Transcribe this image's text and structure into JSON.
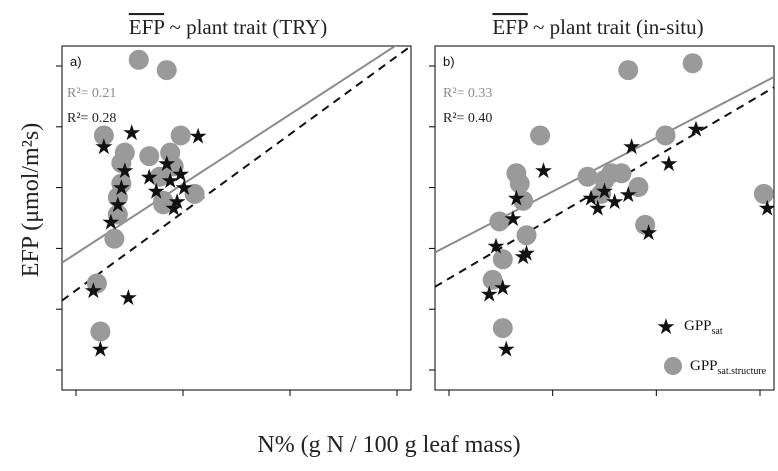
{
  "chart_data": [
    {
      "type": "scatter",
      "panel_label": "a)",
      "title": "EFP ~ plant trait (TRY)",
      "title_overlined": "EFP",
      "title_rest": " ~ plant trait (TRY)",
      "r2_structure": "R²= 0.21",
      "r2_gpp": "R²= 0.28",
      "r2_structure_color": "#8c8c8c",
      "r2_gpp_color": "#222222",
      "xlim": [
        0,
        10
      ],
      "ylim": [
        0,
        10
      ],
      "series": [
        {
          "name": "GPPsat.structure",
          "marker": "circle",
          "color": "#9a9a9a",
          "points": [
            [
              1.0,
              3.1
            ],
            [
              1.1,
              1.7
            ],
            [
              1.2,
              7.4
            ],
            [
              1.5,
              4.4
            ],
            [
              1.6,
              5.1
            ],
            [
              1.6,
              5.6
            ],
            [
              1.7,
              6.0
            ],
            [
              1.7,
              6.6
            ],
            [
              1.8,
              6.9
            ],
            [
              2.2,
              9.6
            ],
            [
              2.5,
              6.8
            ],
            [
              2.8,
              6.2
            ],
            [
              2.9,
              5.4
            ],
            [
              2.9,
              5.5
            ],
            [
              3.0,
              9.3
            ],
            [
              3.1,
              6.9
            ],
            [
              3.2,
              6.5
            ],
            [
              3.4,
              7.4
            ],
            [
              3.8,
              5.7
            ]
          ],
          "star_points": [
            [
              0.9,
              2.9
            ],
            [
              1.1,
              1.2
            ],
            [
              1.2,
              7.1
            ],
            [
              1.4,
              4.9
            ],
            [
              1.6,
              5.4
            ],
            [
              1.7,
              5.9
            ],
            [
              1.8,
              6.4
            ],
            [
              1.9,
              2.7
            ],
            [
              2.0,
              7.5
            ],
            [
              2.5,
              6.2
            ],
            [
              2.7,
              5.8
            ],
            [
              3.0,
              6.6
            ],
            [
              3.1,
              6.1
            ],
            [
              3.2,
              5.3
            ],
            [
              3.3,
              5.5
            ],
            [
              3.4,
              6.3
            ],
            [
              3.5,
              5.9
            ],
            [
              3.9,
              7.4
            ]
          ]
        }
      ],
      "xticks": 4,
      "yticks": 6,
      "line_structure": {
        "color": "#8c8c8c",
        "style": "solid",
        "x": [
          0,
          10
        ],
        "y": [
          3.7,
          10.3
        ]
      },
      "line_gpp": {
        "color": "#111111",
        "style": "dashed",
        "x": [
          0,
          10
        ],
        "y": [
          2.6,
          10.0
        ]
      }
    },
    {
      "type": "scatter",
      "panel_label": "b)",
      "title": "EFP ~ plant trait (in-situ)",
      "title_overlined": "EFP",
      "title_rest": " ~ plant trait (in-situ)",
      "r2_structure": "R²= 0.33",
      "r2_gpp": "R²= 0.40",
      "r2_structure_color": "#8c8c8c",
      "r2_gpp_color": "#222222",
      "xlim": [
        0,
        10
      ],
      "ylim": [
        0,
        10
      ],
      "series": [
        {
          "name": "GPPsat.structure",
          "marker": "circle",
          "color": "#9a9a9a",
          "points": [
            [
              1.7,
              3.2
            ],
            [
              1.9,
              4.9
            ],
            [
              2.0,
              3.8
            ],
            [
              2.0,
              1.8
            ],
            [
              2.4,
              6.3
            ],
            [
              2.5,
              6.0
            ],
            [
              2.6,
              5.5
            ],
            [
              2.7,
              4.5
            ],
            [
              3.1,
              7.4
            ],
            [
              4.5,
              6.2
            ],
            [
              4.9,
              5.7
            ],
            [
              5.0,
              6.1
            ],
            [
              5.2,
              6.3
            ],
            [
              5.5,
              6.3
            ],
            [
              5.7,
              9.3
            ],
            [
              6.0,
              5.9
            ],
            [
              6.2,
              4.8
            ],
            [
              6.8,
              7.4
            ],
            [
              7.6,
              9.5
            ],
            [
              9.7,
              5.7
            ]
          ],
          "star_points": [
            [
              1.6,
              2.8
            ],
            [
              1.8,
              4.2
            ],
            [
              2.0,
              3.0
            ],
            [
              2.1,
              1.2
            ],
            [
              2.3,
              5.0
            ],
            [
              2.4,
              5.6
            ],
            [
              2.6,
              3.9
            ],
            [
              2.7,
              4.0
            ],
            [
              3.2,
              6.4
            ],
            [
              4.6,
              5.6
            ],
            [
              4.8,
              5.3
            ],
            [
              5.0,
              5.8
            ],
            [
              5.3,
              5.5
            ],
            [
              5.7,
              5.7
            ],
            [
              5.8,
              7.1
            ],
            [
              6.3,
              4.6
            ],
            [
              6.9,
              6.6
            ],
            [
              7.7,
              7.6
            ],
            [
              9.8,
              5.3
            ]
          ]
        }
      ],
      "xticks": 4,
      "yticks": 6,
      "line_structure": {
        "color": "#8c8c8c",
        "style": "solid",
        "x": [
          0,
          10
        ],
        "y": [
          4.0,
          9.1
        ]
      },
      "line_gpp": {
        "color": "#111111",
        "style": "dashed",
        "x": [
          0,
          10
        ],
        "y": [
          3.0,
          8.8
        ]
      }
    }
  ],
  "ylabel": "EFP (μmol/m²s)",
  "xlabel": "N% (g N / 100 g leaf mass)",
  "legend": {
    "gpp_main": "GPP",
    "gpp_sub": "sat",
    "structure_main": "GPP",
    "structure_sub": "sat.structure"
  },
  "colors": {
    "circle": "#9a9a9a",
    "star": "#111111",
    "line_structure": "#8c8c8c",
    "line_gpp": "#111111"
  }
}
